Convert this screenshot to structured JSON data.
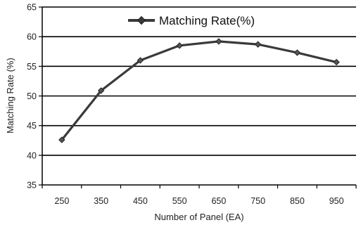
{
  "chart_data": {
    "type": "line",
    "x": [
      250,
      350,
      450,
      550,
      650,
      750,
      850,
      950
    ],
    "categories": [
      "250",
      "350",
      "450",
      "550",
      "650",
      "750",
      "850",
      "950"
    ],
    "series": [
      {
        "name": "Matching Rate(%)",
        "values": [
          42.6,
          50.9,
          56.0,
          58.5,
          59.2,
          58.7,
          57.3,
          55.7
        ]
      }
    ],
    "xlabel": "Number of  Panel (EA)",
    "ylabel": "Matching Rate (%)",
    "ylim": [
      35,
      65
    ],
    "yticks": [
      "35",
      "40",
      "45",
      "50",
      "55",
      "60",
      "65"
    ],
    "grid": true,
    "legend_position": "top-center",
    "marker": "diamond",
    "line_color": "#3a3a3a"
  }
}
